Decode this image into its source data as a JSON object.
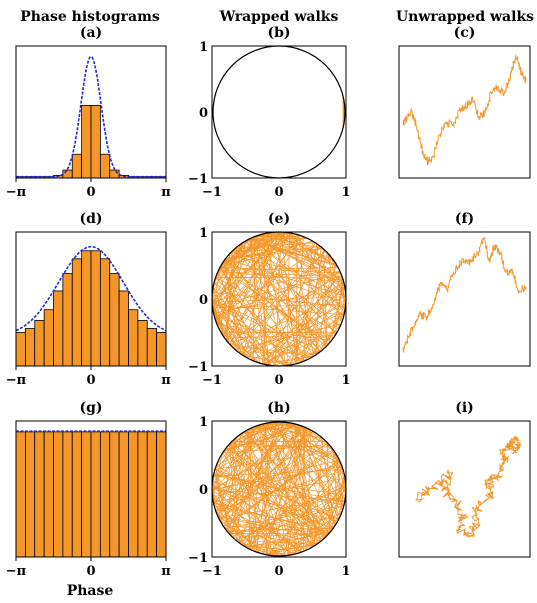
{
  "column_titles": [
    "Phase histograms",
    "Wrapped walks",
    "Unwrapped walks"
  ],
  "panel_labels": [
    "(a)",
    "(b)",
    "(c)",
    "(d)",
    "(e)",
    "(f)",
    "(g)",
    "(h)",
    "(i)"
  ],
  "xlabel": "Phase",
  "colors": {
    "bar_fill": "#f5962a",
    "walk": "#f5962a",
    "density": "#1f2bd6",
    "frame": "#000000"
  },
  "chart_data": [
    {
      "panel": "(a)",
      "type": "bar",
      "x_ticks": [
        "−π",
        "0",
        "π"
      ],
      "xlim": [
        -3.1416,
        3.1416
      ],
      "ylim": [
        0,
        1.0
      ],
      "bin_centers": [
        -3.0,
        -2.6,
        -2.2,
        -1.8,
        -1.4,
        -1.0,
        -0.6,
        -0.2,
        0.2,
        0.6,
        1.0,
        1.4,
        1.8,
        2.2,
        2.6,
        3.0
      ],
      "values": [
        0.01,
        0.01,
        0.01,
        0.01,
        0.02,
        0.06,
        0.18,
        0.55,
        0.55,
        0.18,
        0.06,
        0.02,
        0.01,
        0.01,
        0.01,
        0.01
      ],
      "density_curve": {
        "kind": "gaussian",
        "peak": 0.92,
        "sigma": 0.42,
        "baseline": 0.01
      }
    },
    {
      "panel": "(b)",
      "type": "line",
      "subtype": "wrapped-walk",
      "x_ticks": [
        "−1",
        "0",
        "1"
      ],
      "y_ticks": [
        "−1",
        "0",
        "1"
      ],
      "xlim": [
        -1,
        1
      ],
      "ylim": [
        -1,
        1
      ],
      "walk_spread": 0.55,
      "walk_center_angle": 0
    },
    {
      "panel": "(c)",
      "type": "line",
      "subtype": "unwrapped-walk",
      "x": [
        0.0,
        0.03,
        0.07,
        0.1,
        0.13,
        0.16,
        0.2,
        0.24,
        0.29,
        0.35,
        0.41,
        0.47,
        0.52,
        0.57,
        0.62,
        0.67,
        0.72,
        0.77,
        0.82,
        0.87,
        0.92,
        0.96,
        1.0
      ],
      "y": [
        0.4,
        0.45,
        0.5,
        0.42,
        0.3,
        0.18,
        0.1,
        0.12,
        0.28,
        0.42,
        0.4,
        0.52,
        0.56,
        0.6,
        0.46,
        0.5,
        0.66,
        0.7,
        0.64,
        0.78,
        0.95,
        0.82,
        0.75
      ]
    },
    {
      "panel": "(d)",
      "type": "bar",
      "x_ticks": [
        "−π",
        "0",
        "π"
      ],
      "xlim": [
        -3.1416,
        3.1416
      ],
      "ylim": [
        0,
        1.0
      ],
      "bin_centers": [
        -3.0,
        -2.6,
        -2.2,
        -1.8,
        -1.4,
        -1.0,
        -0.6,
        -0.2,
        0.2,
        0.6,
        1.0,
        1.4,
        1.8,
        2.2,
        2.6,
        3.0
      ],
      "values": [
        0.25,
        0.28,
        0.34,
        0.42,
        0.56,
        0.69,
        0.8,
        0.86,
        0.86,
        0.8,
        0.69,
        0.56,
        0.42,
        0.34,
        0.28,
        0.25
      ],
      "density_curve": {
        "kind": "gaussian",
        "peak": 0.89,
        "sigma": 1.35,
        "baseline": 0.22
      }
    },
    {
      "panel": "(e)",
      "type": "line",
      "subtype": "wrapped-walk",
      "x_ticks": [
        "−1",
        "0",
        "1"
      ],
      "y_ticks": [
        "−1",
        "0",
        "1"
      ],
      "xlim": [
        -1,
        1
      ],
      "ylim": [
        -1,
        1
      ],
      "walk_spread": 6.3,
      "walk_center_angle": 0
    },
    {
      "panel": "(f)",
      "type": "line",
      "subtype": "unwrapped-walk",
      "x": [
        0.0,
        0.04,
        0.09,
        0.14,
        0.19,
        0.24,
        0.3,
        0.36,
        0.42,
        0.48,
        0.54,
        0.6,
        0.66,
        0.7,
        0.74,
        0.79,
        0.84,
        0.89,
        0.94,
        1.0
      ],
      "y": [
        0.1,
        0.18,
        0.3,
        0.38,
        0.35,
        0.45,
        0.62,
        0.58,
        0.72,
        0.8,
        0.78,
        0.86,
        0.98,
        0.8,
        0.92,
        0.86,
        0.7,
        0.72,
        0.55,
        0.6
      ]
    },
    {
      "panel": "(g)",
      "type": "bar",
      "x_ticks": [
        "−π",
        "0",
        "π"
      ],
      "xlim": [
        -3.1416,
        3.1416
      ],
      "ylim": [
        0,
        1.0
      ],
      "bin_centers": [
        -3.0,
        -2.6,
        -2.2,
        -1.8,
        -1.4,
        -1.0,
        -0.6,
        -0.2,
        0.2,
        0.6,
        1.0,
        1.4,
        1.8,
        2.2,
        2.6,
        3.0
      ],
      "values": [
        0.92,
        0.92,
        0.92,
        0.92,
        0.92,
        0.92,
        0.92,
        0.92,
        0.92,
        0.92,
        0.92,
        0.92,
        0.92,
        0.92,
        0.92,
        0.92
      ],
      "density_curve": {
        "kind": "flat",
        "level": 0.925
      }
    },
    {
      "panel": "(h)",
      "type": "line",
      "subtype": "wrapped-walk",
      "x_ticks": [
        "−1",
        "0",
        "1"
      ],
      "y_ticks": [
        "−1",
        "0",
        "1"
      ],
      "xlim": [
        -1,
        1
      ],
      "ylim": [
        -1,
        1
      ],
      "walk_spread": 6.3,
      "walk_center_angle": 0
    },
    {
      "panel": "(i)",
      "type": "line",
      "subtype": "2d-walk",
      "x": [
        0.12,
        0.2,
        0.3,
        0.38,
        0.34,
        0.42,
        0.5,
        0.46,
        0.55,
        0.6,
        0.58,
        0.66,
        0.72,
        0.7,
        0.78,
        0.84,
        0.8,
        0.88,
        0.92,
        0.86,
        0.9,
        0.95
      ],
      "y": [
        0.42,
        0.5,
        0.55,
        0.62,
        0.48,
        0.4,
        0.3,
        0.18,
        0.14,
        0.22,
        0.32,
        0.4,
        0.48,
        0.56,
        0.62,
        0.72,
        0.78,
        0.82,
        0.9,
        0.88,
        0.8,
        0.84
      ]
    }
  ]
}
